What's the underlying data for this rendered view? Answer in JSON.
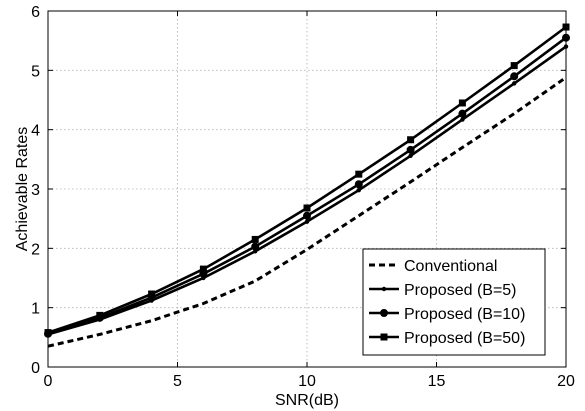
{
  "chart_data": {
    "type": "line",
    "title": "",
    "xlabel": "SNR(dB)",
    "ylabel": "Achievable Rates",
    "xlim": [
      0,
      20
    ],
    "ylim": [
      0,
      6
    ],
    "xticks": [
      0,
      5,
      10,
      15,
      20
    ],
    "yticks": [
      0,
      1,
      2,
      3,
      4,
      5,
      6
    ],
    "grid": true,
    "legend_position": "bottom-right",
    "series": [
      {
        "name": "Conventional",
        "style": "dashed",
        "marker": "none",
        "x": [
          0,
          2,
          4,
          6,
          8,
          10,
          12,
          14,
          16,
          18,
          20
        ],
        "values": [
          0.35,
          0.55,
          0.78,
          1.07,
          1.45,
          1.98,
          2.55,
          3.12,
          3.7,
          4.27,
          4.88
        ]
      },
      {
        "name": "Proposed (B=5)",
        "style": "solid",
        "marker": "small-dot",
        "x": [
          0,
          2,
          4,
          6,
          8,
          10,
          12,
          14,
          16,
          18,
          20
        ],
        "values": [
          0.55,
          0.8,
          1.12,
          1.5,
          1.95,
          2.45,
          2.98,
          3.56,
          4.17,
          4.78,
          5.4
        ]
      },
      {
        "name": "Proposed (B=10)",
        "style": "solid",
        "marker": "circle",
        "x": [
          0,
          2,
          4,
          6,
          8,
          10,
          12,
          14,
          16,
          18,
          20
        ],
        "values": [
          0.56,
          0.83,
          1.17,
          1.57,
          2.03,
          2.55,
          3.08,
          3.66,
          4.27,
          4.9,
          5.55
        ]
      },
      {
        "name": "Proposed (B=50)",
        "style": "solid",
        "marker": "square",
        "x": [
          0,
          2,
          4,
          6,
          8,
          10,
          12,
          14,
          16,
          18,
          20
        ],
        "values": [
          0.58,
          0.87,
          1.23,
          1.65,
          2.15,
          2.68,
          3.25,
          3.83,
          4.45,
          5.08,
          5.73
        ]
      }
    ]
  }
}
